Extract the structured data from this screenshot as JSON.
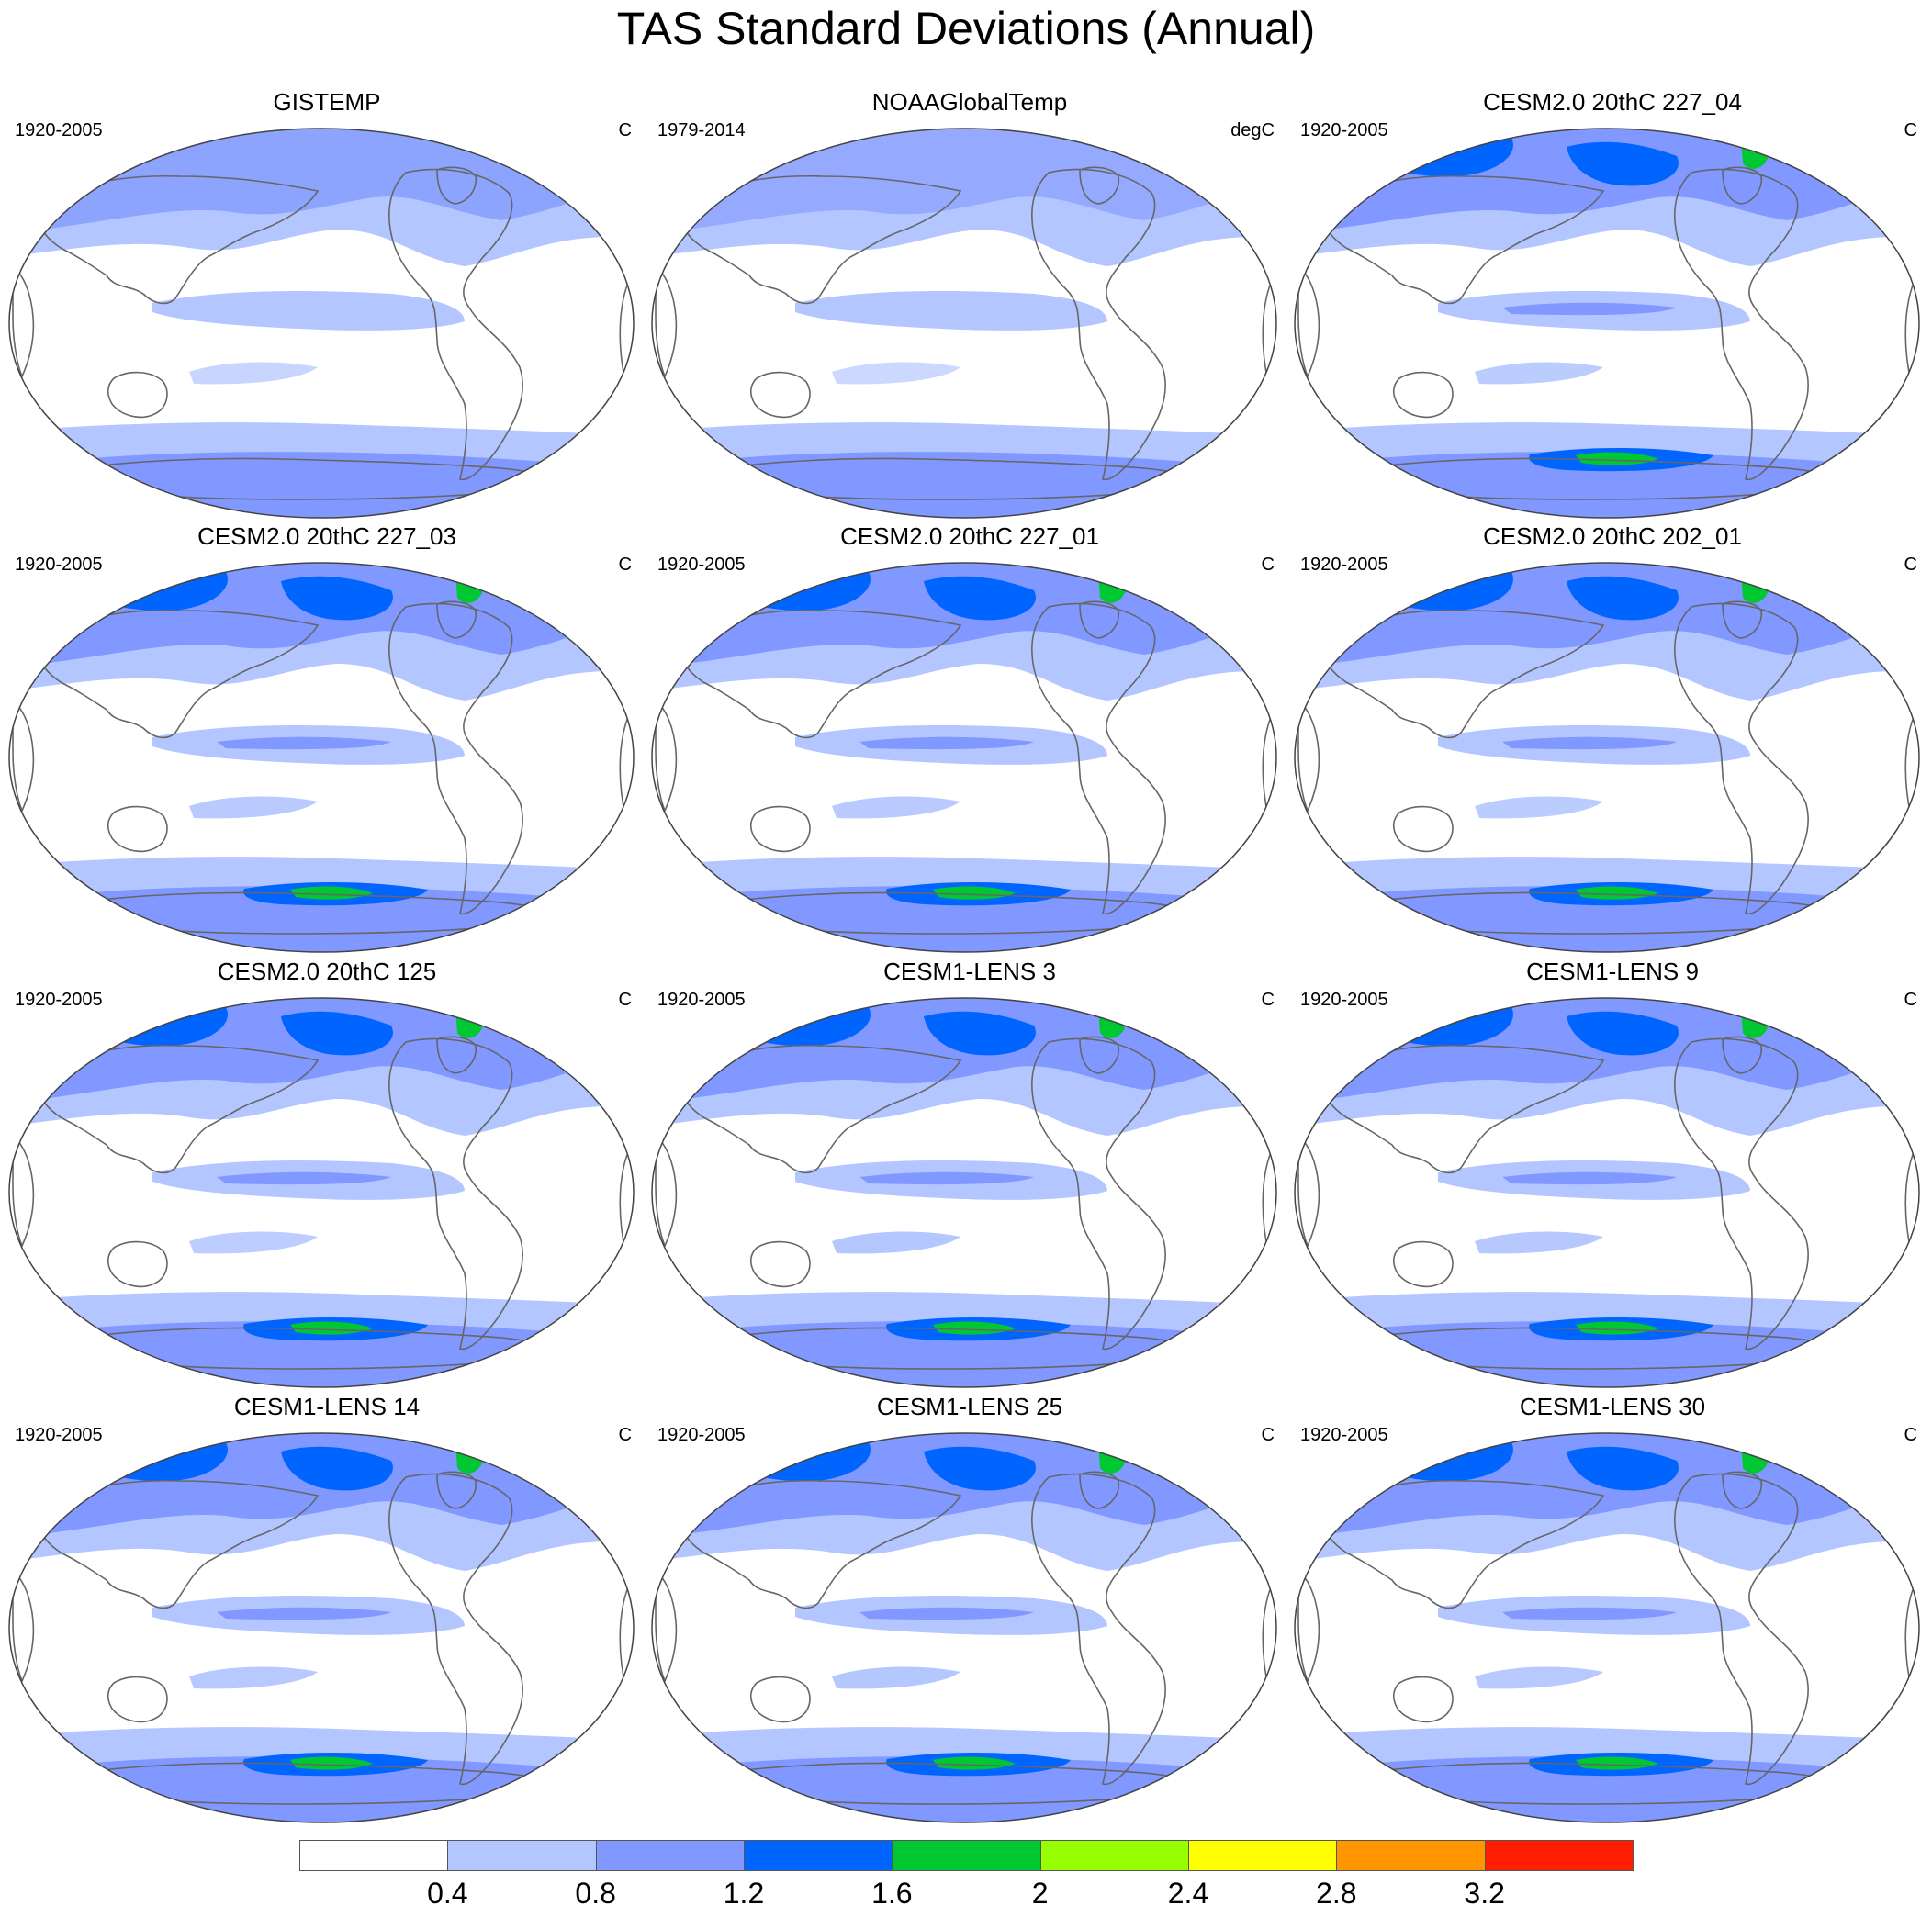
{
  "title": "TAS Standard Deviations (Annual)",
  "panels": [
    {
      "title": "GISTEMP",
      "period": "1920-2005",
      "unit": "C",
      "intensity": 0.35
    },
    {
      "title": "NOAAGlobalTemp",
      "period": "1979-2014",
      "unit": "degC",
      "intensity": 0.2
    },
    {
      "title": "CESM2.0 20thC 227_04",
      "period": "1920-2005",
      "unit": "C",
      "intensity": 0.75
    },
    {
      "title": "CESM2.0 20thC 227_03",
      "period": "1920-2005",
      "unit": "C",
      "intensity": 0.8
    },
    {
      "title": "CESM2.0 20thC 227_01",
      "period": "1920-2005",
      "unit": "C",
      "intensity": 0.8
    },
    {
      "title": "CESM2.0 20thC 202_01",
      "period": "1920-2005",
      "unit": "C",
      "intensity": 0.75
    },
    {
      "title": "CESM2.0 20thC 125",
      "period": "1920-2005",
      "unit": "C",
      "intensity": 0.7
    },
    {
      "title": "CESM1-LENS 3",
      "period": "1920-2005",
      "unit": "C",
      "intensity": 0.95
    },
    {
      "title": "CESM1-LENS 9",
      "period": "1920-2005",
      "unit": "C",
      "intensity": 0.9
    },
    {
      "title": "CESM1-LENS 14",
      "period": "1920-2005",
      "unit": "C",
      "intensity": 0.85
    },
    {
      "title": "CESM1-LENS 25",
      "period": "1920-2005",
      "unit": "C",
      "intensity": 0.95
    },
    {
      "title": "CESM1-LENS 30",
      "period": "1920-2005",
      "unit": "C",
      "intensity": 0.85
    }
  ],
  "colorbar": {
    "colors": [
      "#ffffff",
      "#b4c6ff",
      "#8098ff",
      "#0064ff",
      "#00c832",
      "#96ff00",
      "#ffff00",
      "#ff9600",
      "#ff1e00"
    ],
    "labels": [
      "0.4",
      "0.8",
      "1.2",
      "1.6",
      "2",
      "2.4",
      "2.8",
      "3.2"
    ]
  }
}
